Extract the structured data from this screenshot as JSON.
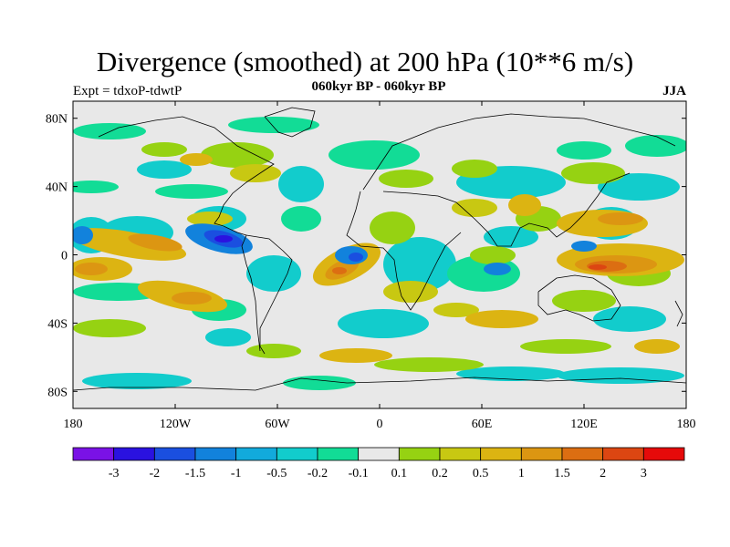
{
  "title": "Divergence (smoothed) at 200 hPa (10**6 m/s)",
  "left_subtitle": "Expt = tdxoP-tdwtP",
  "center_subtitle": "060kyr BP - 060kyr BP",
  "right_subtitle": "JJA",
  "map": {
    "projection": "cylindrical-equidistant",
    "lon_range": [
      -180,
      180
    ],
    "lat_range": [
      -90,
      90
    ],
    "background_color": "#e8e8e8",
    "lat_tick_labels": [
      {
        "lat": 80,
        "label": "80N"
      },
      {
        "lat": 40,
        "label": "40N"
      },
      {
        "lat": 0,
        "label": "0"
      },
      {
        "lat": -40,
        "label": "40S"
      },
      {
        "lat": -80,
        "label": "80S"
      }
    ],
    "lon_tick_labels": [
      {
        "lon": -180,
        "label": "180"
      },
      {
        "lon": -120,
        "label": "120W"
      },
      {
        "lon": -60,
        "label": "60W"
      },
      {
        "lon": 0,
        "label": "0"
      },
      {
        "lon": 60,
        "label": "60E"
      },
      {
        "lon": 120,
        "label": "120E"
      },
      {
        "lon": 180,
        "label": "180"
      }
    ]
  },
  "colorbar": {
    "colors": [
      "#7a12e6",
      "#2a12e0",
      "#1a4fe0",
      "#1282dc",
      "#12aadc",
      "#12cccc",
      "#12dc96",
      "#e8e8e8",
      "#96d212",
      "#c8c812",
      "#dcb412",
      "#dc9612",
      "#dc6e12",
      "#dc4612",
      "#e60a0a"
    ],
    "labels": [
      "-3",
      "-2",
      "-1.5",
      "-1",
      "-0.5",
      "-0.2",
      "-0.1",
      "0.1",
      "0.2",
      "0.5",
      "1",
      "1.5",
      "2",
      "3"
    ]
  },
  "chart_data": {
    "type": "heatmap",
    "title": "Divergence (smoothed) at 200 hPa (10**6 m/s)",
    "xlabel": "",
    "ylabel": "",
    "xlim": [
      -180,
      180
    ],
    "ylim": [
      -90,
      90
    ],
    "levels": [
      -3,
      -2,
      -1.5,
      -1,
      -0.5,
      -0.2,
      -0.1,
      0.1,
      0.2,
      0.5,
      1,
      1.5,
      2,
      3
    ],
    "features": [
      {
        "lon": -95,
        "lat": 12,
        "value": -2.5
      },
      {
        "lon": -125,
        "lat": 12,
        "value": -0.7
      },
      {
        "lon": -25,
        "lat": 0,
        "value": -1.2
      },
      {
        "lon": -150,
        "lat": 8,
        "value": 0.8
      },
      {
        "lon": -165,
        "lat": -5,
        "value": 1.0
      },
      {
        "lon": -140,
        "lat": -25,
        "value": 1.0
      },
      {
        "lon": -20,
        "lat": -10,
        "value": 1.4
      },
      {
        "lon": 135,
        "lat": 18,
        "value": 1.0
      },
      {
        "lon": 140,
        "lat": -4,
        "value": 2.0
      },
      {
        "lon": 110,
        "lat": 5,
        "value": -0.5
      },
      {
        "lon": 10,
        "lat": 10,
        "value": -0.6
      },
      {
        "lon": 70,
        "lat": -35,
        "value": 0.4
      },
      {
        "lon": 0,
        "lat": -55,
        "value": 0.5
      },
      {
        "lon": -120,
        "lat": 35,
        "value": 0.5
      },
      {
        "lon": 150,
        "lat": 50,
        "value": -0.3
      }
    ]
  }
}
